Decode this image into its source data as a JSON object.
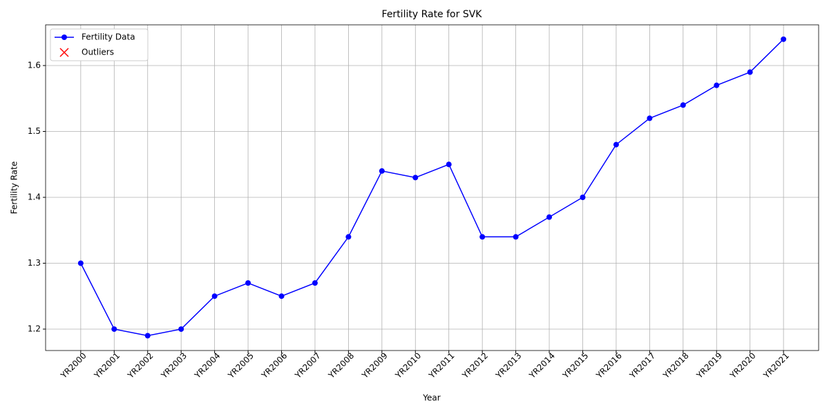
{
  "chart_data": {
    "type": "line",
    "title": "Fertility Rate for SVK",
    "x_label": "Year",
    "y_label": "Fertility Rate",
    "categories": [
      "YR2000",
      "YR2001",
      "YR2002",
      "YR2003",
      "YR2004",
      "YR2005",
      "YR2006",
      "YR2007",
      "YR2008",
      "YR2009",
      "YR2010",
      "YR2011",
      "YR2012",
      "YR2013",
      "YR2014",
      "YR2015",
      "YR2016",
      "YR2017",
      "YR2018",
      "YR2019",
      "YR2020",
      "YR2021"
    ],
    "series": [
      {
        "name": "Fertility Data",
        "color": "#0000ff",
        "marker": "o",
        "values": [
          1.3,
          1.2,
          1.19,
          1.2,
          1.25,
          1.27,
          1.25,
          1.27,
          1.34,
          1.44,
          1.43,
          1.45,
          1.34,
          1.34,
          1.37,
          1.4,
          1.48,
          1.52,
          1.54,
          1.57,
          1.59,
          1.64
        ]
      },
      {
        "name": "Outliers",
        "color": "#ff0000",
        "marker": "x",
        "values": [
          null,
          null,
          null,
          null,
          null,
          null,
          null,
          null,
          null,
          null,
          null,
          null,
          null,
          null,
          null,
          null,
          null,
          null,
          null,
          null,
          null,
          null
        ]
      }
    ],
    "ylim": [
      1.1675,
      1.6618
    ],
    "yticks": [
      1.2,
      1.3,
      1.4,
      1.5,
      1.6
    ],
    "grid": true,
    "legend": "upper left"
  }
}
